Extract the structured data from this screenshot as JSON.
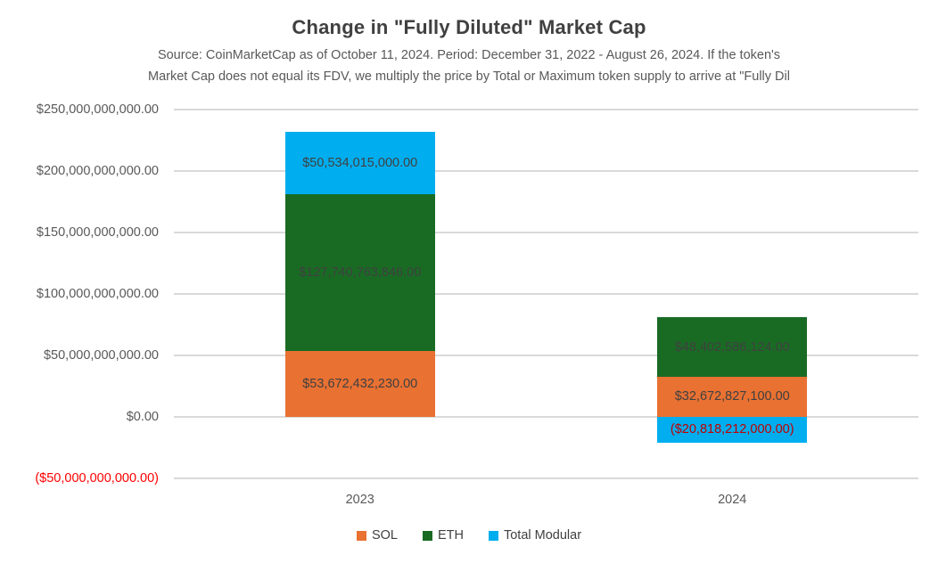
{
  "header": {
    "title": "Change in \"Fully Diluted\" Market Cap",
    "subtitle_line1": "Source: CoinMarketCap as of October 11, 2024. Period: December 31, 2022 - August 26, 2024. If the token's",
    "subtitle_line2": "Market Cap does not equal its FDV, we multiply the price by Total or Maximum token supply to arrive at \"Fully Dil"
  },
  "colors": {
    "sol": "#E97132",
    "eth": "#196B24",
    "total_modular": "#00AEEF",
    "gridline": "#D9D9D9",
    "title_text": "#404040",
    "subtitle_text": "#595959",
    "axis_text": "#595959",
    "data_label_text": "#404040",
    "negative_data_label_text": "#C00000",
    "negative_axis_label_text": "#FF0000"
  },
  "chart_data": {
    "type": "bar",
    "stacked": true,
    "title": "Change in \"Fully Diluted\" Market Cap",
    "categories": [
      "2023",
      "2024"
    ],
    "series": [
      {
        "name": "SOL",
        "color": "#E97132",
        "values": [
          53672432230,
          32672827100
        ],
        "labels": [
          "$53,672,432,230.00",
          "$32,672,827,100.00"
        ]
      },
      {
        "name": "ETH",
        "color": "#196B24",
        "values": [
          127740763846,
          48402586124
        ],
        "labels": [
          "$127,740,763,846.00",
          "$48,402,586,124.00"
        ]
      },
      {
        "name": "Total Modular",
        "color": "#00AEEF",
        "values": [
          50534015000,
          -20818212000
        ],
        "labels": [
          "$50,534,015,000.00",
          "($20,818,212,000.00)"
        ]
      }
    ],
    "y_axis": {
      "min": -50000000000,
      "max": 250000000000,
      "tick_step": 50000000000,
      "tick_labels": [
        "$250,000,000,000.00",
        "$200,000,000,000.00",
        "$150,000,000,000.00",
        "$100,000,000,000.00",
        "$50,000,000,000.00",
        "$0.00",
        "($50,000,000,000.00)"
      ]
    },
    "grid": true,
    "legend": [
      "SOL",
      "ETH",
      "Total Modular"
    ],
    "legend_position": "bottom"
  }
}
